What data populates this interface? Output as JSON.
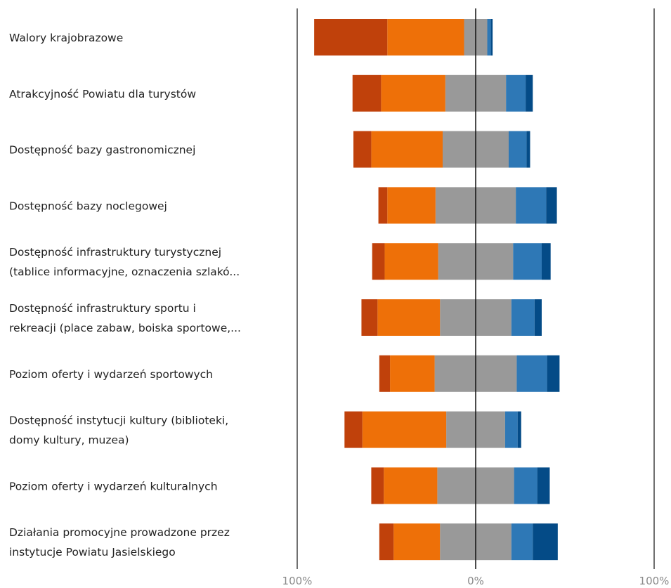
{
  "chart_data": {
    "type": "bar",
    "orientation": "horizontal",
    "stacking": "diverging",
    "categories": [
      [
        "Walory krajobrazowe"
      ],
      [
        "Atrakcyjność Powiatu dla turystów"
      ],
      [
        "Dostępność bazy gastronomicznej"
      ],
      [
        "Dostępność bazy noclegowej"
      ],
      [
        "Dostępność infrastruktury turystycznej",
        "(tablice informacyjne, oznaczenia szlakó..."
      ],
      [
        "Dostępność infrastruktury sportu i",
        "rekreacji (place zabaw, boiska sportowe,..."
      ],
      [
        "Poziom oferty i wydarzeń sportowych"
      ],
      [
        "Dostępność instytucji kultury (biblioteki,",
        "domy kultury, muzea)"
      ],
      [
        "Poziom oferty i wydarzeń kulturalnych"
      ],
      [
        "Działania promocyjne prowadzone przez",
        "instytucje Powiatu Jasielskiego"
      ]
    ],
    "series": [
      {
        "color": "#c0410b",
        "side": "negative",
        "values": [
          41,
          16,
          10,
          5,
          7,
          9,
          6,
          10,
          7,
          8
        ]
      },
      {
        "color": "#ee7008",
        "side": "negative",
        "values": [
          43,
          36,
          40,
          27,
          30,
          35,
          25,
          47,
          30,
          26
        ]
      },
      {
        "color": "#999999",
        "side": "split",
        "values": [
          13,
          34,
          37,
          45,
          42,
          40,
          46,
          33,
          43,
          40
        ]
      },
      {
        "color": "#2e78b6",
        "side": "positive",
        "values": [
          2,
          11,
          10,
          17,
          16,
          13,
          17,
          7,
          13,
          12
        ]
      },
      {
        "color": "#044b87",
        "side": "positive",
        "values": [
          1,
          4,
          2,
          6,
          5,
          4,
          7,
          2,
          7,
          14
        ]
      }
    ],
    "xlim": [
      -100,
      100
    ],
    "x_tick_labels": [
      "100%",
      "0%",
      "100%"
    ],
    "grid": false,
    "legend": "none"
  }
}
